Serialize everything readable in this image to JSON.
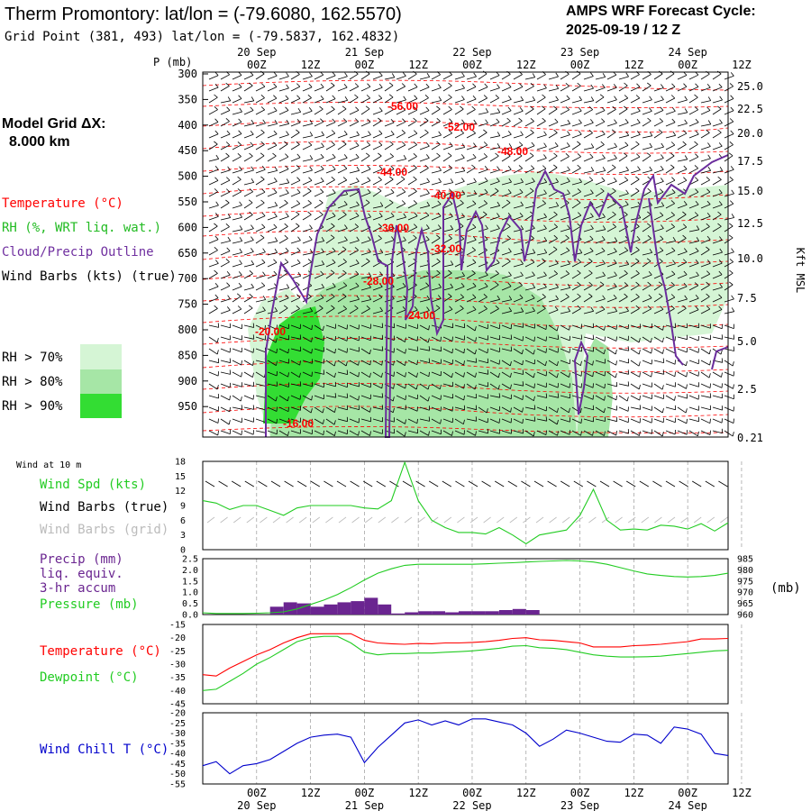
{
  "header": {
    "title": "Therm Promontory:  lat/lon = (-79.6080, 162.5570)",
    "subtitle": "Grid Point (381, 493) lat/lon = (-79.5837, 162.4832)",
    "cycle_line1": "AMPS WRF Forecast Cycle:",
    "cycle_line2": "2025-09-19 / 12  Z"
  },
  "model_grid": {
    "label": "Model Grid ΔX:",
    "value": "8.000 km"
  },
  "legend": {
    "temperature": "Temperature (°C)",
    "rh": "RH (%, WRT liq. wat.)",
    "cloud": "Cloud/Precip Outline",
    "wind": "Wind Barbs (kts) (true)",
    "rh70": "RH > 70%",
    "rh80": "RH > 80%",
    "rh90": "RH > 90%"
  },
  "colors": {
    "temperature": "#ff0000",
    "rh_label": "#22bb22",
    "cloud": "#7030a0",
    "rh70": "#d5f5d5",
    "rh80": "#a6e6a6",
    "rh90": "#33dd33",
    "wind_spd": "#22cc22",
    "barbs_grid": "#bbbbbb",
    "precip": "#6a2590",
    "pressure": "#22cc22",
    "dewpoint": "#22cc22",
    "temp_line": "#ff0000",
    "windchill": "#0000cc"
  },
  "time_axis": {
    "top_ticks": [
      "00Z",
      "12Z",
      "00Z",
      "12Z",
      "00Z",
      "12Z",
      "00Z",
      "12Z",
      "00Z",
      "12Z"
    ],
    "top_dates": [
      "20 Sep",
      "21 Sep",
      "22 Sep",
      "23 Sep",
      "24 Sep"
    ],
    "bottom_ticks": [
      "00Z",
      "12Z",
      "00Z",
      "12Z",
      "00Z",
      "12Z",
      "00Z",
      "12Z",
      "00Z",
      "12Z"
    ],
    "bottom_dates": [
      "20 Sep",
      "21 Sep",
      "22 Sep",
      "23 Sep",
      "24 Sep"
    ]
  },
  "profile": {
    "p_label": "P (mb)",
    "pressure_levels": [
      "300",
      "350",
      "400",
      "450",
      "500",
      "550",
      "600",
      "650",
      "700",
      "750",
      "800",
      "850",
      "900",
      "950"
    ],
    "height_labels": [
      "25.0",
      "22.5",
      "20.0",
      "17.5",
      "15.0",
      "12.5",
      "10.0",
      "7.5",
      "5.0",
      "2.5",
      "0.21"
    ],
    "height_axis_label": "Kft MSL",
    "temp_contour_labels": [
      "-56.00",
      "-52.00",
      "-48.00",
      "-44.00",
      "-40.00",
      "-36.00",
      "-32.00",
      "-28.00",
      "-24.00",
      "-20.00",
      "-16.00"
    ]
  },
  "surface": {
    "wind_title": "Wind at 10 m",
    "wind_spd": "Wind Spd (kts)",
    "wind_barbs_true": "Wind Barbs (true)",
    "wind_barbs_grid": "Wind Barbs (grid)",
    "precip1": "Precip (mm)",
    "precip2": "liq. equiv.",
    "precip3": "3-hr accum",
    "pressure": "Pressure (mb)",
    "pressure_unit": "(mb)",
    "temperature": "Temperature (°C)",
    "dewpoint": "Dewpoint (°C)",
    "windchill": "Wind Chill T (°C)"
  },
  "chart_data": [
    {
      "type": "line",
      "title": "Wind Spd (kts)",
      "ylim": [
        0,
        18
      ],
      "y_ticks": [
        "0",
        "3",
        "6",
        "9",
        "12",
        "15",
        "18"
      ],
      "x_hours": [
        0,
        3,
        6,
        9,
        12,
        15,
        18,
        21,
        24,
        27,
        30,
        33,
        36,
        39,
        42,
        45,
        48,
        51,
        54,
        57,
        60,
        63,
        66,
        69,
        72,
        75,
        78,
        81,
        84,
        87,
        90,
        93,
        96,
        99,
        102,
        105,
        108,
        111,
        114,
        117
      ],
      "series": [
        {
          "name": "Wind Spd",
          "values": [
            10,
            9.5,
            8.2,
            9,
            9,
            8,
            7,
            8.5,
            9,
            9,
            9,
            9,
            8.5,
            8.3,
            10,
            17.8,
            10,
            6,
            4.5,
            3.5,
            3.5,
            3.2,
            4.5,
            3,
            1.2,
            3,
            3.5,
            4,
            7,
            12.3,
            6,
            4,
            4.2,
            4,
            5,
            4.8,
            4.2,
            5.3,
            3.8,
            5.5
          ]
        }
      ]
    },
    {
      "type": "bar",
      "title": "Precip (mm) liq. equiv. 3-hr accum",
      "ylim": [
        0,
        2.5
      ],
      "y_ticks": [
        "0.0",
        "0.5",
        "1.0",
        "1.5",
        "2.0",
        "2.5"
      ],
      "x_start_hours": [
        0,
        3,
        6,
        9,
        12,
        15,
        18,
        21,
        24,
        27,
        30,
        33,
        36,
        39,
        42,
        45,
        48,
        51,
        54,
        57,
        60,
        63,
        66,
        69,
        72
      ],
      "values": [
        0,
        0,
        0,
        0,
        0,
        0.35,
        0.55,
        0.5,
        0.35,
        0.45,
        0.55,
        0.6,
        0.75,
        0.45,
        0.05,
        0.1,
        0.15,
        0.15,
        0.1,
        0.15,
        0.15,
        0.15,
        0.2,
        0.25,
        0.2
      ]
    },
    {
      "type": "line",
      "title": "Pressure (mb)",
      "ylim": [
        960,
        985
      ],
      "y_ticks": [
        "960",
        "965",
        "970",
        "975",
        "980",
        "985"
      ],
      "x_hours": [
        0,
        3,
        6,
        9,
        12,
        15,
        18,
        21,
        24,
        27,
        30,
        33,
        36,
        39,
        42,
        45,
        48,
        51,
        54,
        57,
        60,
        63,
        66,
        69,
        72,
        75,
        78,
        81,
        84,
        87,
        90,
        93,
        96,
        99,
        102,
        105,
        108,
        111,
        114,
        117
      ],
      "series": [
        {
          "name": "Pressure",
          "values": [
            960.8,
            960.5,
            960.5,
            960.5,
            960.6,
            960.8,
            961.2,
            962.5,
            964.5,
            966.5,
            969,
            972,
            975.5,
            978.5,
            980.5,
            982,
            982.5,
            982.5,
            982.5,
            982.5,
            982.5,
            982.7,
            983,
            983.2,
            983.5,
            983.8,
            984,
            984.2,
            984,
            983.5,
            982.5,
            981,
            979.5,
            978.2,
            977.5,
            977,
            976.8,
            977,
            977.5,
            978.5
          ]
        }
      ]
    },
    {
      "type": "line",
      "title": "Temperature / Dewpoint (°C)",
      "ylim": [
        -45,
        -15
      ],
      "y_ticks": [
        "-45",
        "-40",
        "-35",
        "-30",
        "-25",
        "-20",
        "-15"
      ],
      "x_hours": [
        0,
        3,
        6,
        9,
        12,
        15,
        18,
        21,
        24,
        27,
        30,
        33,
        36,
        39,
        42,
        45,
        48,
        51,
        54,
        57,
        60,
        63,
        66,
        69,
        72,
        75,
        78,
        81,
        84,
        87,
        90,
        93,
        96,
        99,
        102,
        105,
        108,
        111,
        114,
        117
      ],
      "series": [
        {
          "name": "Temperature",
          "values": [
            -34,
            -34.5,
            -31.5,
            -29,
            -26.5,
            -24.5,
            -22,
            -20,
            -18.5,
            -18.5,
            -18.5,
            -18.5,
            -21,
            -22,
            -22.3,
            -22.5,
            -22.2,
            -22.3,
            -22,
            -22,
            -21.8,
            -21.5,
            -21,
            -20.3,
            -20,
            -20.8,
            -21,
            -21.5,
            -22,
            -23.5,
            -23.5,
            -23.5,
            -23,
            -22.8,
            -22.5,
            -22,
            -21.5,
            -20.5,
            -20.5,
            -20.3
          ]
        },
        {
          "name": "Dewpoint",
          "values": [
            -40,
            -39.5,
            -36.5,
            -33.5,
            -30,
            -27.5,
            -24.5,
            -21.5,
            -20,
            -19.5,
            -19.5,
            -22,
            -25.5,
            -26.5,
            -26,
            -26,
            -25.8,
            -25.8,
            -25.5,
            -25.3,
            -25,
            -24.5,
            -24,
            -23.2,
            -23,
            -23.8,
            -24,
            -24.5,
            -25.5,
            -26.5,
            -27,
            -27.3,
            -27.3,
            -27.2,
            -27,
            -26.5,
            -26,
            -25.5,
            -25,
            -24.8
          ]
        }
      ]
    },
    {
      "type": "line",
      "title": "Wind Chill T (°C)",
      "ylim": [
        -55,
        -20
      ],
      "y_ticks": [
        "-55",
        "-50",
        "-45",
        "-40",
        "-35",
        "-30",
        "-25",
        "-20"
      ],
      "x_hours": [
        0,
        3,
        6,
        9,
        12,
        15,
        18,
        21,
        24,
        27,
        30,
        33,
        36,
        39,
        42,
        45,
        48,
        51,
        54,
        57,
        60,
        63,
        66,
        69,
        72,
        75,
        78,
        81,
        84,
        87,
        90,
        93,
        96,
        99,
        102,
        105,
        108,
        111,
        114,
        117
      ],
      "series": [
        {
          "name": "Wind Chill",
          "values": [
            -46,
            -44,
            -50,
            -46,
            -45,
            -43,
            -39,
            -35,
            -32,
            -31,
            -30.5,
            -32,
            -44.5,
            -37,
            -31,
            -25,
            -23.5,
            -26,
            -24,
            -26,
            -23,
            -23,
            -24.5,
            -26,
            -30,
            -36.5,
            -33,
            -28.5,
            -30,
            -32,
            -34,
            -34.5,
            -30.5,
            -31,
            -35,
            -27,
            -28,
            -30.5,
            -40,
            -41
          ]
        }
      ]
    }
  ]
}
